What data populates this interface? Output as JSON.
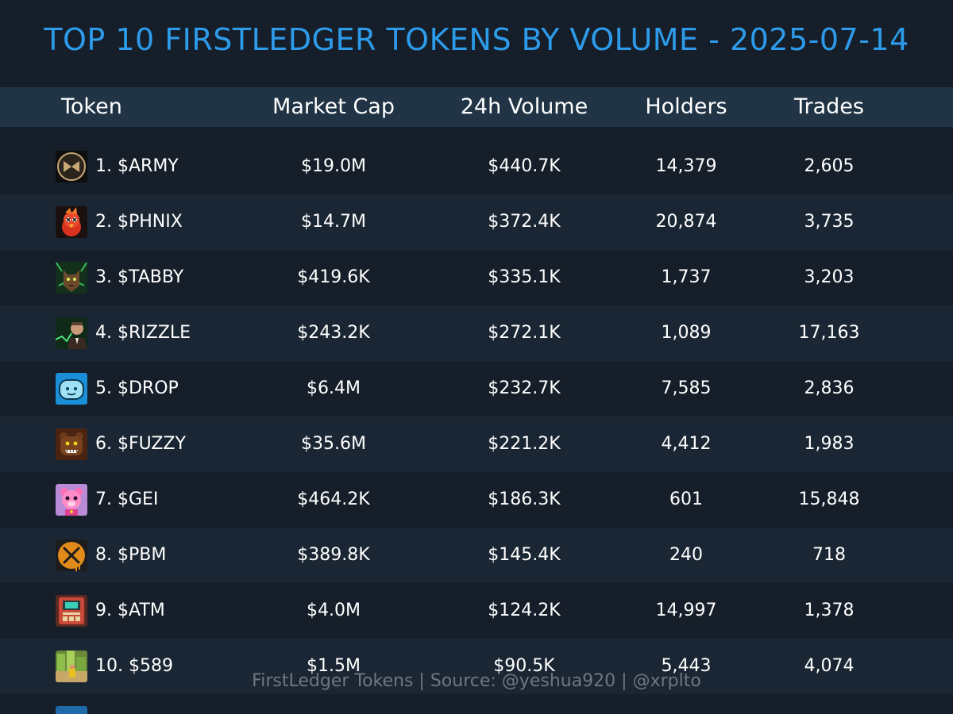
{
  "title": "TOP 10 FIRSTLEDGER TOKENS BY VOLUME - 2025-07-14",
  "columns": {
    "token": "Token",
    "market_cap": "Market Cap",
    "volume": "24h Volume",
    "holders": "Holders",
    "trades": "Trades"
  },
  "rows": [
    {
      "token": "1. $ARMY",
      "market_cap": "$19.0M",
      "volume": "$440.7K",
      "holders": "14,379",
      "trades": "2,605",
      "icon": "army-logo-icon"
    },
    {
      "token": "2. $PHNIX",
      "market_cap": "$14.7M",
      "volume": "$372.4K",
      "holders": "20,874",
      "trades": "3,735",
      "icon": "phoenix-bird-icon"
    },
    {
      "token": "3. $TABBY",
      "market_cap": "$419.6K",
      "volume": "$335.1K",
      "holders": "1,737",
      "trades": "3,203",
      "icon": "tabby-cat-icon"
    },
    {
      "token": "4. $RIZZLE",
      "market_cap": "$243.2K",
      "volume": "$272.1K",
      "holders": "1,089",
      "trades": "17,163",
      "icon": "rizzle-portrait-icon"
    },
    {
      "token": "5. $DROP",
      "market_cap": "$6.4M",
      "volume": "$232.7K",
      "holders": "7,585",
      "trades": "2,836",
      "icon": "drop-face-icon"
    },
    {
      "token": "6. $FUZZY",
      "market_cap": "$35.6M",
      "volume": "$221.2K",
      "holders": "4,412",
      "trades": "1,983",
      "icon": "fuzzy-bear-icon"
    },
    {
      "token": "7. $GEI",
      "market_cap": "$464.2K",
      "volume": "$186.3K",
      "holders": "601",
      "trades": "15,848",
      "icon": "pink-bear-icon"
    },
    {
      "token": "8. $PBM",
      "market_cap": "$389.8K",
      "volume": "$145.4K",
      "holders": "240",
      "trades": "718",
      "icon": "xrp-coin-icon"
    },
    {
      "token": "9. $ATM",
      "market_cap": "$4.0M",
      "volume": "$124.2K",
      "holders": "14,997",
      "trades": "1,378",
      "icon": "atm-machine-icon"
    },
    {
      "token": "10. $589",
      "market_cap": "$1.5M",
      "volume": "$90.5K",
      "holders": "5,443",
      "trades": "4,074",
      "icon": "pixel-city-icon"
    }
  ],
  "footer": "FirstLedger Tokens | Source: @yeshua920 | @xrplto",
  "colors": {
    "background": "#151e29",
    "header_band": "#213445",
    "alt_row": "#1a2633",
    "title": "#2d9bea",
    "footer_text": "#6f7780"
  }
}
